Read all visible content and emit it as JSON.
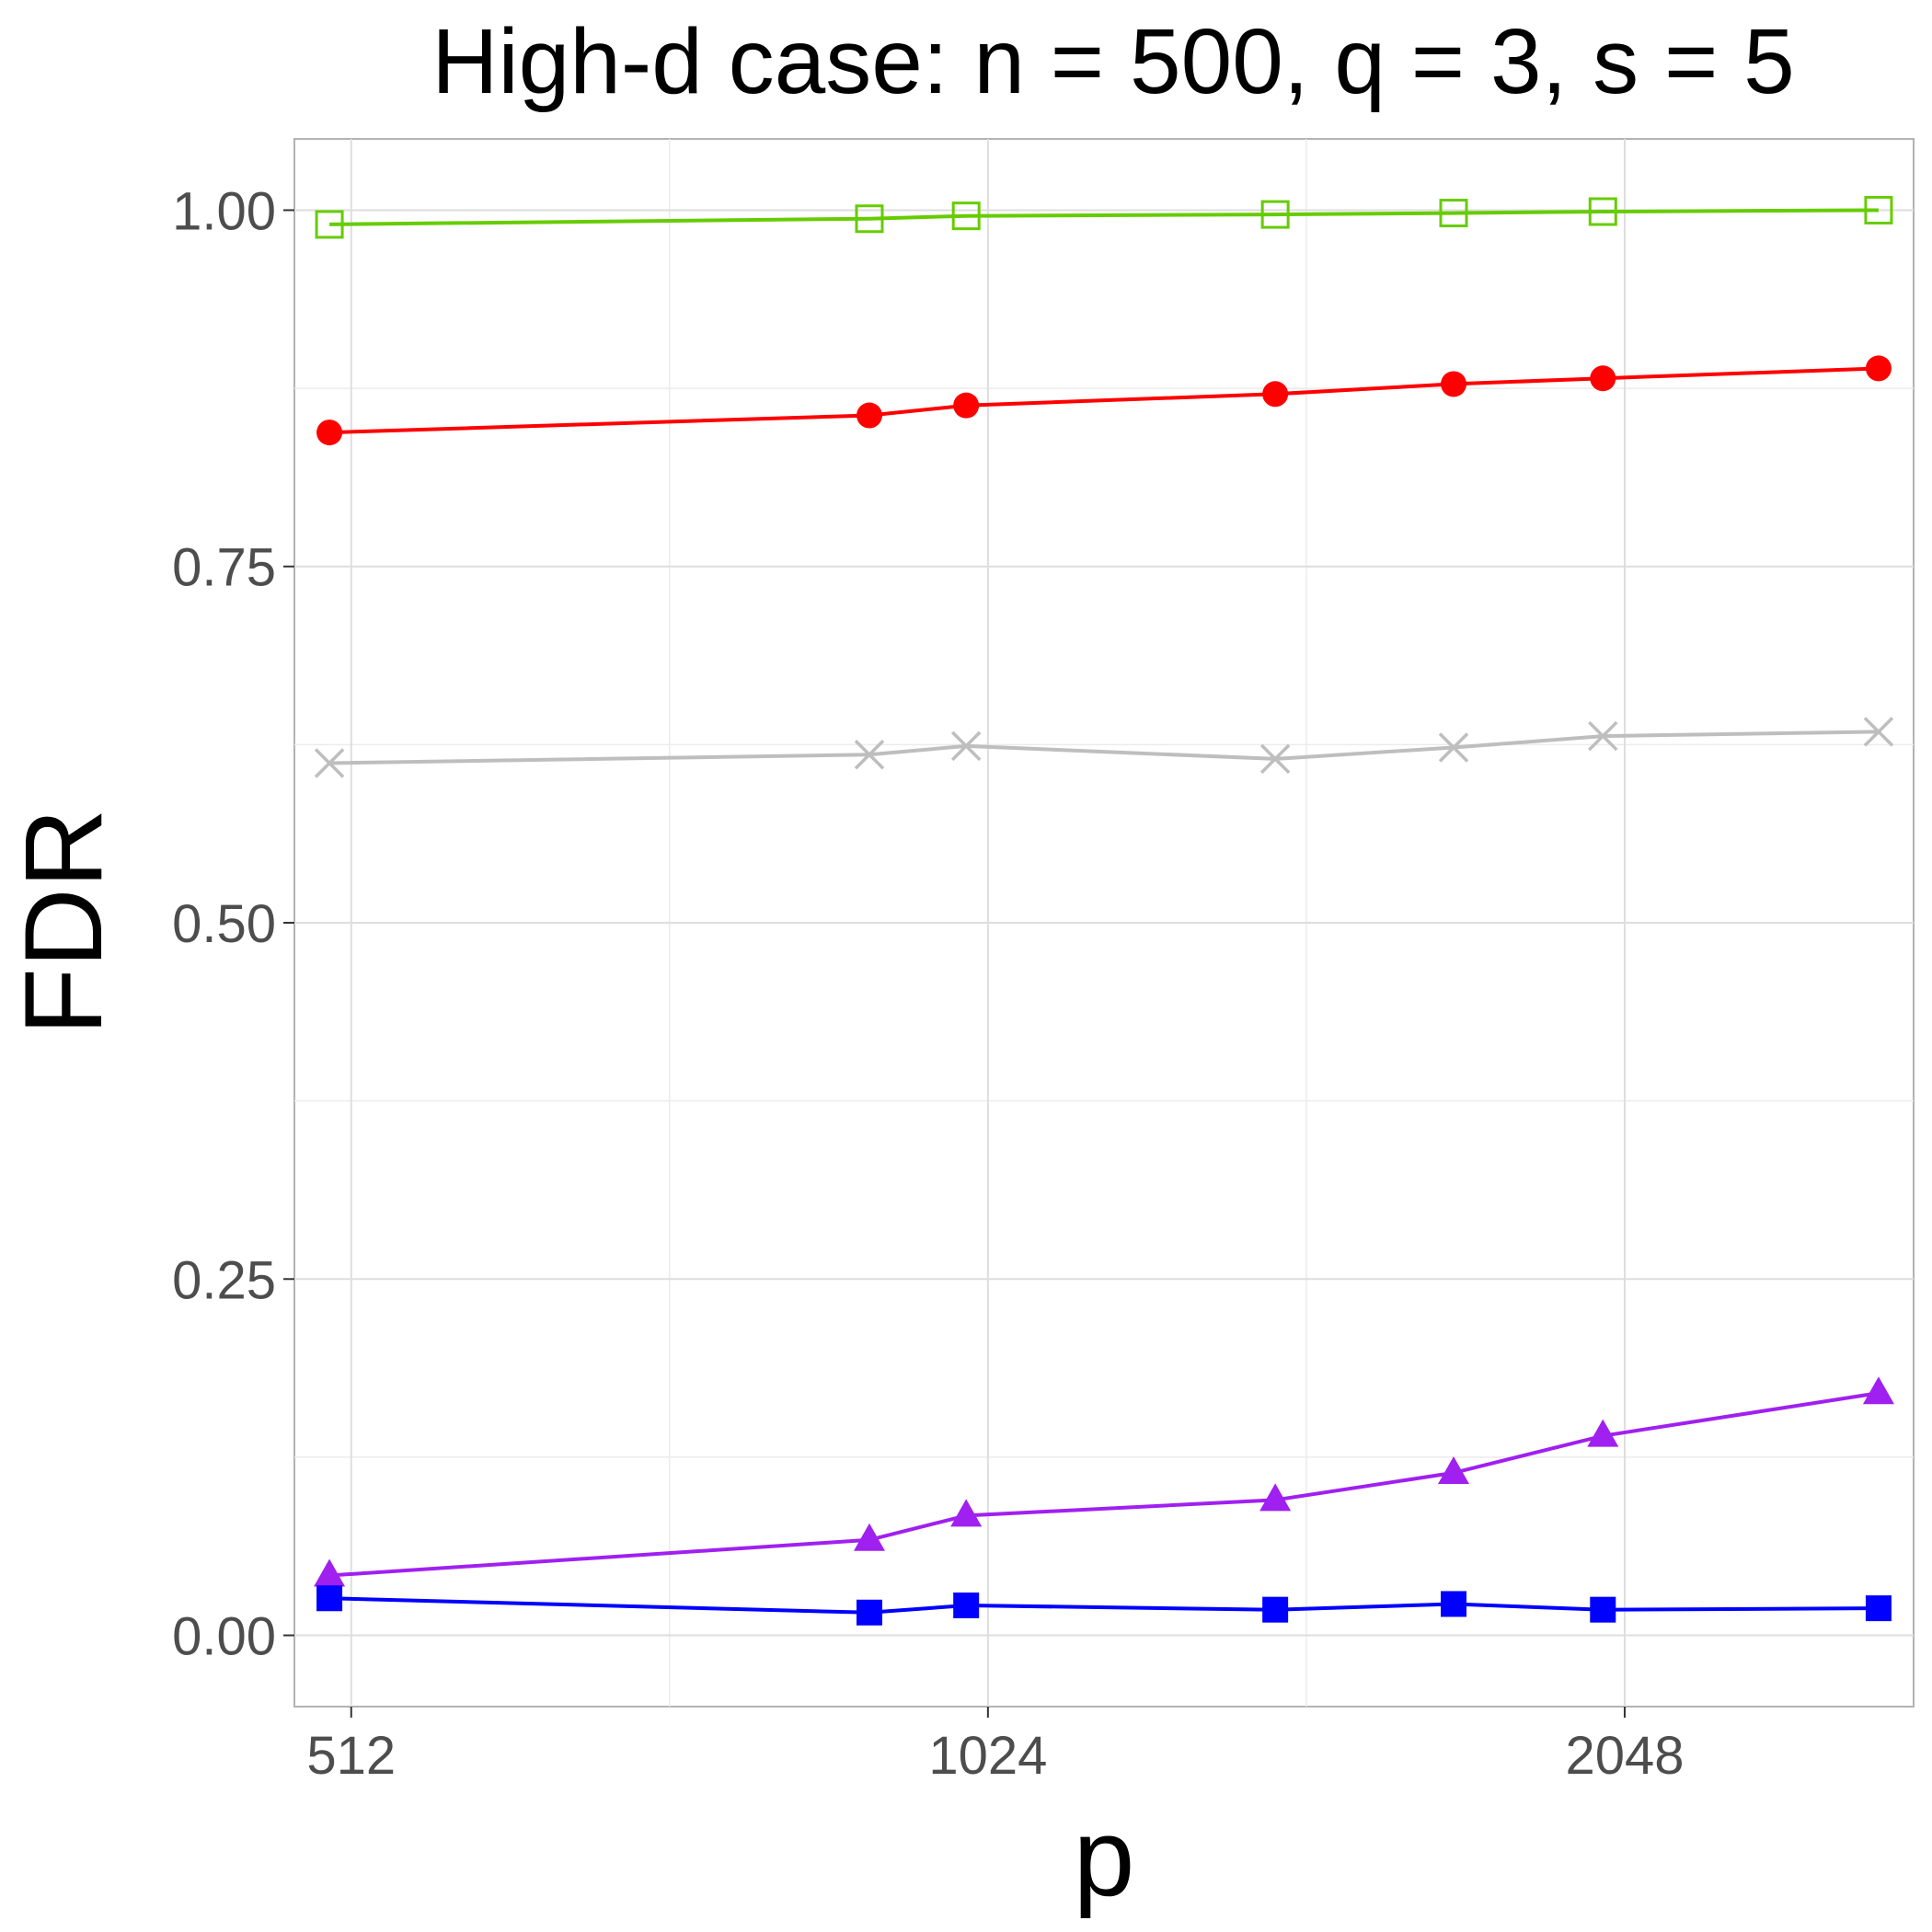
{
  "chart_data": {
    "type": "line",
    "title": "High-d case: n = 500, q = 3, s = 5",
    "xlabel": "p",
    "ylabel": "FDR",
    "x_scale": "log2",
    "x": [
      500,
      900,
      1000,
      1400,
      1700,
      2000,
      2700
    ],
    "xticks": [
      512,
      1024,
      2048
    ],
    "xtick_labels": [
      "512",
      "1024",
      "2048"
    ],
    "yticks": [
      0.0,
      0.25,
      0.5,
      0.75,
      1.0
    ],
    "ytick_labels": [
      "0.00",
      "0.25",
      "0.50",
      "0.75",
      "1.00"
    ],
    "ylim": [
      -0.05,
      1.05
    ],
    "grid": true,
    "legend": "none",
    "series": [
      {
        "name": "green-open-square",
        "color": "#66CC00",
        "marker": "open-square",
        "values": [
          0.99,
          0.994,
          0.996,
          0.997,
          0.998,
          0.999,
          1.0
        ]
      },
      {
        "name": "red-circle",
        "color": "#FF0000",
        "marker": "circle",
        "values": [
          0.844,
          0.856,
          0.863,
          0.871,
          0.878,
          0.882,
          0.889
        ]
      },
      {
        "name": "grey-x",
        "color": "#BEBEBE",
        "marker": "x",
        "values": [
          0.612,
          0.618,
          0.624,
          0.615,
          0.623,
          0.631,
          0.634
        ]
      },
      {
        "name": "purple-triangle",
        "color": "#A020F0",
        "marker": "triangle",
        "values": [
          0.042,
          0.067,
          0.084,
          0.095,
          0.114,
          0.14,
          0.17
        ]
      },
      {
        "name": "blue-square",
        "color": "#0000FF",
        "marker": "filled-square",
        "values": [
          0.026,
          0.016,
          0.021,
          0.018,
          0.022,
          0.018,
          0.019
        ]
      }
    ]
  }
}
